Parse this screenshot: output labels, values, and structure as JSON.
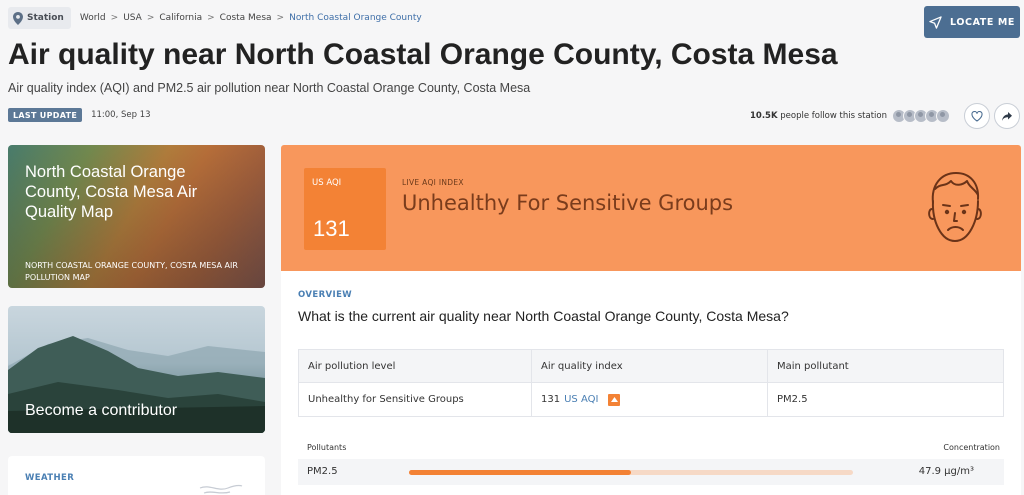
{
  "breadcrumb": {
    "station_tag": "Station",
    "items": [
      "World",
      "USA",
      "California",
      "Costa Mesa"
    ],
    "current": "North Coastal Orange County"
  },
  "header": {
    "locate_button": "LOCATE ME",
    "title": "Air quality near North Coastal Orange County, Costa Mesa",
    "subtitle": "Air quality index (AQI) and PM2.5 air pollution near North Coastal Orange County, Costa Mesa",
    "last_update_label": "LAST UPDATE",
    "last_update_time": "11:00, Sep 13",
    "followers_count": "10.5K",
    "followers_text": "people follow this station"
  },
  "sidebar": {
    "map_card_title": "North Coastal Orange County, Costa Mesa Air Quality Map",
    "map_card_subtitle": "NORTH COASTAL ORANGE COUNTY, COSTA MESA AIR POLLUTION MAP",
    "contributor_card_label": "Become a contributor",
    "weather_label": "WEATHER"
  },
  "aqi": {
    "box_label": "US AQI",
    "value": "131",
    "live_label": "LIVE AQI INDEX",
    "status": "Unhealthy For Sensitive Groups",
    "color": "#f38235"
  },
  "overview": {
    "label": "OVERVIEW",
    "question": "What is the current air quality near North Coastal Orange County, Costa Mesa?",
    "table": {
      "headers": [
        "Air pollution level",
        "Air quality index",
        "Main pollutant"
      ],
      "level": "Unhealthy for Sensitive Groups",
      "aqi_value": "131",
      "aqi_unit": "US AQI",
      "main_pollutant": "PM2.5"
    },
    "pollutants_header": "Pollutants",
    "concentration_header": "Concentration",
    "pollutants": [
      {
        "name": "PM2.5",
        "value": "47.9 µg/m³",
        "level_fraction": 0.5
      }
    ]
  }
}
